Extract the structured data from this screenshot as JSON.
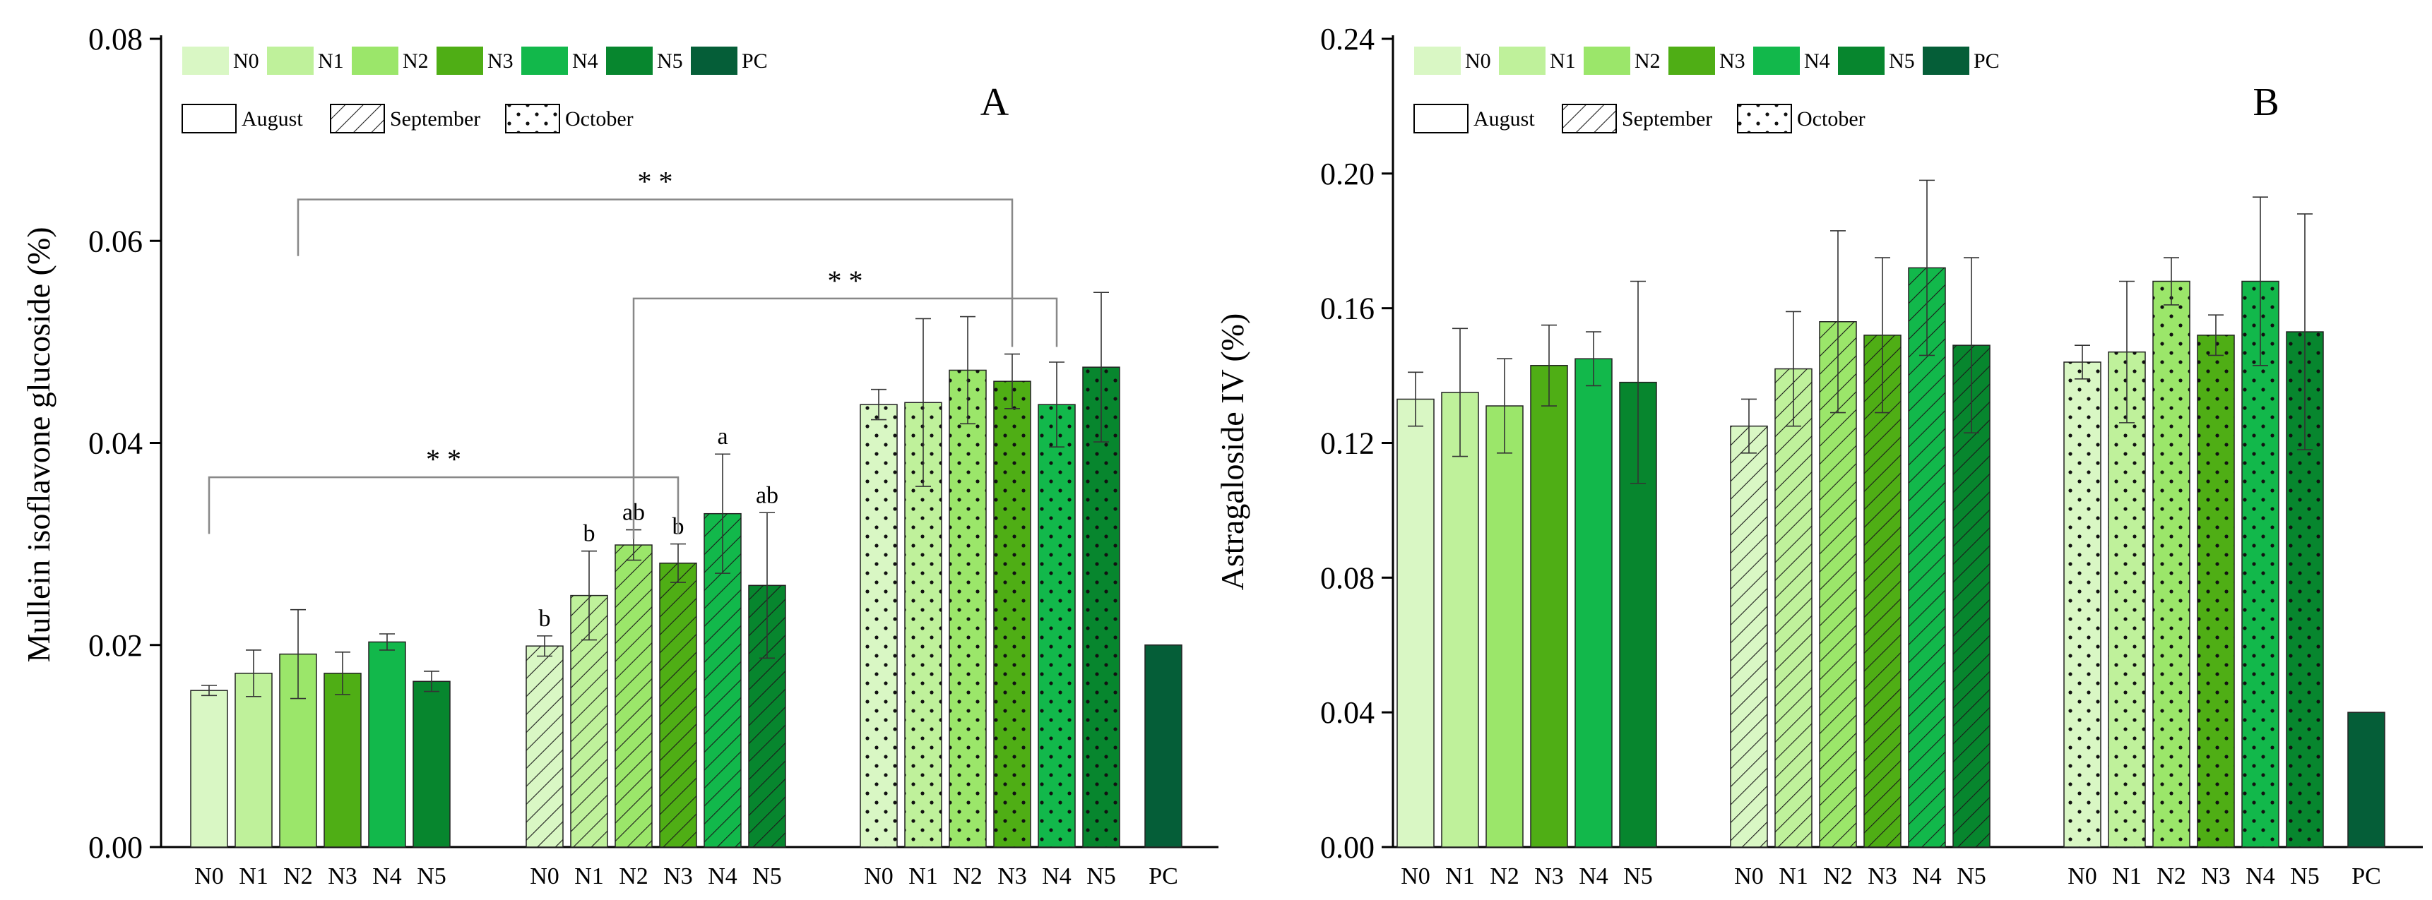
{
  "legend": {
    "nitrogen": [
      {
        "label": "N0",
        "color": "#d9f7c4"
      },
      {
        "label": "N1",
        "color": "#bff19b"
      },
      {
        "label": "N2",
        "color": "#9be66a"
      },
      {
        "label": "N3",
        "color": "#4fae15"
      },
      {
        "label": "N4",
        "color": "#12b84b"
      },
      {
        "label": "N5",
        "color": "#07862e"
      },
      {
        "label": "PC",
        "color": "#055e38"
      }
    ],
    "months": [
      {
        "label": "August",
        "pattern": "plain"
      },
      {
        "label": "September",
        "pattern": "hatch"
      },
      {
        "label": "October",
        "pattern": "dots"
      }
    ]
  },
  "chart_data": [
    {
      "type": "bar",
      "panel_label": "A",
      "ylabel": "Mullein isoflavone glucoside (%)",
      "ylim": [
        0,
        0.08
      ],
      "yticks": [
        "0.00",
        "0.02",
        "0.04",
        "0.06",
        "0.08"
      ],
      "groups": [
        "August",
        "September",
        "October"
      ],
      "categories": [
        "N0",
        "N1",
        "N2",
        "N3",
        "N4",
        "N5"
      ],
      "series": [
        {
          "name": "August",
          "values": [
            0.0155,
            0.0172,
            0.0191,
            0.0172,
            0.0203,
            0.0164
          ],
          "errors": [
            0.0005,
            0.0023,
            0.0044,
            0.0021,
            0.0008,
            0.001
          ],
          "labels": [
            "",
            "",
            "",
            "",
            "",
            ""
          ]
        },
        {
          "name": "September",
          "values": [
            0.0199,
            0.0249,
            0.0299,
            0.0281,
            0.033,
            0.0259
          ],
          "errors": [
            0.001,
            0.0044,
            0.0015,
            0.0019,
            0.0059,
            0.0072
          ],
          "labels": [
            "b",
            "b",
            "ab",
            "b",
            "a",
            "ab"
          ]
        },
        {
          "name": "October",
          "values": [
            0.0438,
            0.044,
            0.0472,
            0.0461,
            0.0438,
            0.0475
          ],
          "errors": [
            0.0015,
            0.0083,
            0.0053,
            0.0027,
            0.0042,
            0.0074
          ],
          "labels": [
            "",
            "",
            "",
            "",
            "",
            ""
          ]
        }
      ],
      "pc": {
        "label": "PC",
        "value": 0.02
      },
      "significance": [
        {
          "label": "* *",
          "from": "August N0",
          "to": "September N3",
          "from_value": 0.031,
          "to_value": 0.031,
          "height": 0.0366
        },
        {
          "label": "* *",
          "from": "August N2",
          "to": "October N3",
          "from_value": 0.0585,
          "to_value": 0.0495,
          "height": 0.0641
        },
        {
          "label": "* *",
          "from": "September N2",
          "to": "October N4",
          "from_value": 0.0305,
          "to_value": 0.0495,
          "height": 0.0543
        }
      ]
    },
    {
      "type": "bar",
      "panel_label": "B",
      "ylabel": "Astragaloside IV (%)",
      "ylim": [
        0,
        0.24
      ],
      "yticks": [
        "0.00",
        "0.04",
        "0.08",
        "0.12",
        "0.16",
        "0.20",
        "0.24"
      ],
      "groups": [
        "August",
        "September",
        "October"
      ],
      "categories": [
        "N0",
        "N1",
        "N2",
        "N3",
        "N4",
        "N5"
      ],
      "series": [
        {
          "name": "August",
          "values": [
            0.133,
            0.135,
            0.131,
            0.143,
            0.145,
            0.138
          ],
          "errors": [
            0.008,
            0.019,
            0.014,
            0.012,
            0.008,
            0.03
          ],
          "labels": [
            "",
            "",
            "",
            "",
            "",
            ""
          ]
        },
        {
          "name": "September",
          "values": [
            0.125,
            0.142,
            0.156,
            0.152,
            0.172,
            0.149
          ],
          "errors": [
            0.008,
            0.017,
            0.027,
            0.023,
            0.026,
            0.026
          ],
          "labels": [
            "",
            "",
            "",
            "",
            "",
            ""
          ]
        },
        {
          "name": "October",
          "values": [
            0.144,
            0.147,
            0.168,
            0.152,
            0.168,
            0.153
          ],
          "errors": [
            0.005,
            0.021,
            0.007,
            0.006,
            0.025,
            0.035
          ],
          "labels": [
            "",
            "",
            "",
            "",
            "",
            ""
          ]
        }
      ],
      "pc": {
        "label": "PC",
        "value": 0.04
      },
      "significance": []
    }
  ]
}
